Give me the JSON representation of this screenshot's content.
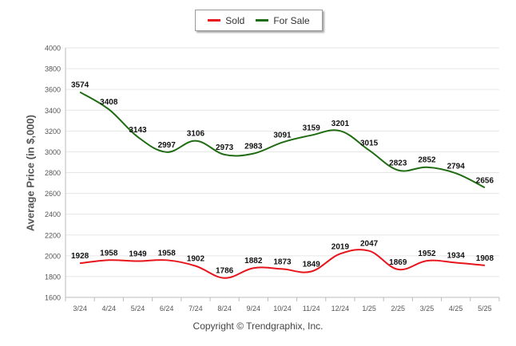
{
  "chart_data": {
    "type": "line",
    "categories": [
      "3/24",
      "4/24",
      "5/24",
      "6/24",
      "7/24",
      "8/24",
      "9/24",
      "10/24",
      "11/24",
      "12/24",
      "1/25",
      "2/25",
      "3/25",
      "4/25",
      "5/25"
    ],
    "series": [
      {
        "name": "Sold",
        "color": "#e8141c",
        "values": [
          1928,
          1958,
          1949,
          1958,
          1902,
          1786,
          1882,
          1873,
          1849,
          2019,
          2047,
          1869,
          1952,
          1934,
          1908
        ]
      },
      {
        "name": "For Sale",
        "color": "#1f6b12",
        "values": [
          3574,
          3408,
          3143,
          2997,
          3106,
          2973,
          2983,
          3091,
          3159,
          3201,
          3015,
          2823,
          2852,
          2794,
          2656
        ]
      }
    ],
    "ylabel": "Average Price (in $,000)",
    "xlabel": "",
    "ylim": [
      1600,
      4000
    ],
    "yticks": [
      1600,
      1800,
      2000,
      2200,
      2400,
      2600,
      2800,
      3000,
      3200,
      3400,
      3600,
      3800,
      4000
    ],
    "grid": true,
    "legend_position": "top-center"
  },
  "legend": {
    "sold_label": "Sold",
    "for_sale_label": "For Sale"
  },
  "footer": {
    "copyright": "Copyright © Trendgraphix, Inc."
  }
}
